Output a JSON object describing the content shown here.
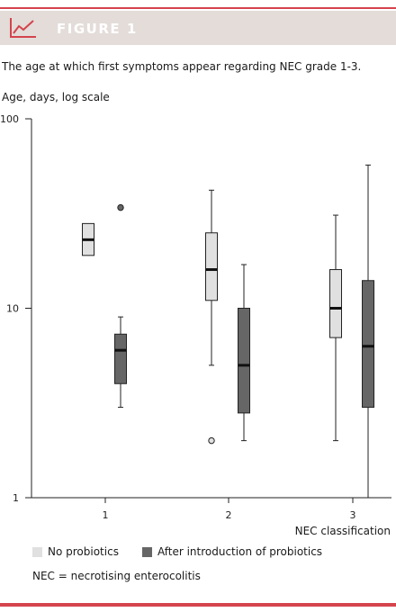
{
  "header": {
    "title": "FIGURE 1",
    "icon": "line-chart-icon"
  },
  "caption": "The age at which first symptoms appear regarding NEC grade 1-3.",
  "note": "NEC = necrotising enterocolitis",
  "colors": {
    "accent": "#d4444c",
    "header_bg": "#e3dcd9",
    "no_probiotics": "#e0e0e0",
    "after_probiotics": "#666666",
    "stroke": "#222222"
  },
  "chart_data": {
    "type": "box",
    "ylabel": "Age, days, log scale",
    "xlabel": "NEC classification",
    "y_scale": "log",
    "ylim": [
      1,
      100
    ],
    "y_ticks": [
      "1",
      "10",
      "100"
    ],
    "categories": [
      "1",
      "2",
      "3"
    ],
    "series": [
      {
        "name": "No probiotics",
        "color": "#e0e0e0",
        "boxes": [
          {
            "category": "1",
            "q1": 19,
            "median": 23,
            "q3": 28
          },
          {
            "category": "2",
            "whisker_low": 5,
            "q1": 11,
            "median": 16,
            "q3": 25,
            "whisker_high": 42,
            "outliers": [
              2
            ]
          },
          {
            "category": "3",
            "whisker_low": 2,
            "q1": 7,
            "median": 10,
            "q3": 16,
            "whisker_high": 31
          }
        ]
      },
      {
        "name": "After introduction of probiotics",
        "color": "#666666",
        "boxes": [
          {
            "category": "1",
            "whisker_low": 3,
            "q1": 4,
            "median": 6,
            "q3": 7.3,
            "whisker_high": 9,
            "outliers": [
              34
            ]
          },
          {
            "category": "2",
            "whisker_low": 2,
            "q1": 2.8,
            "median": 5,
            "q3": 10,
            "whisker_high": 17
          },
          {
            "category": "3",
            "whisker_low": 1,
            "q1": 3,
            "median": 6.3,
            "q3": 14,
            "whisker_high": 57
          }
        ]
      }
    ]
  }
}
